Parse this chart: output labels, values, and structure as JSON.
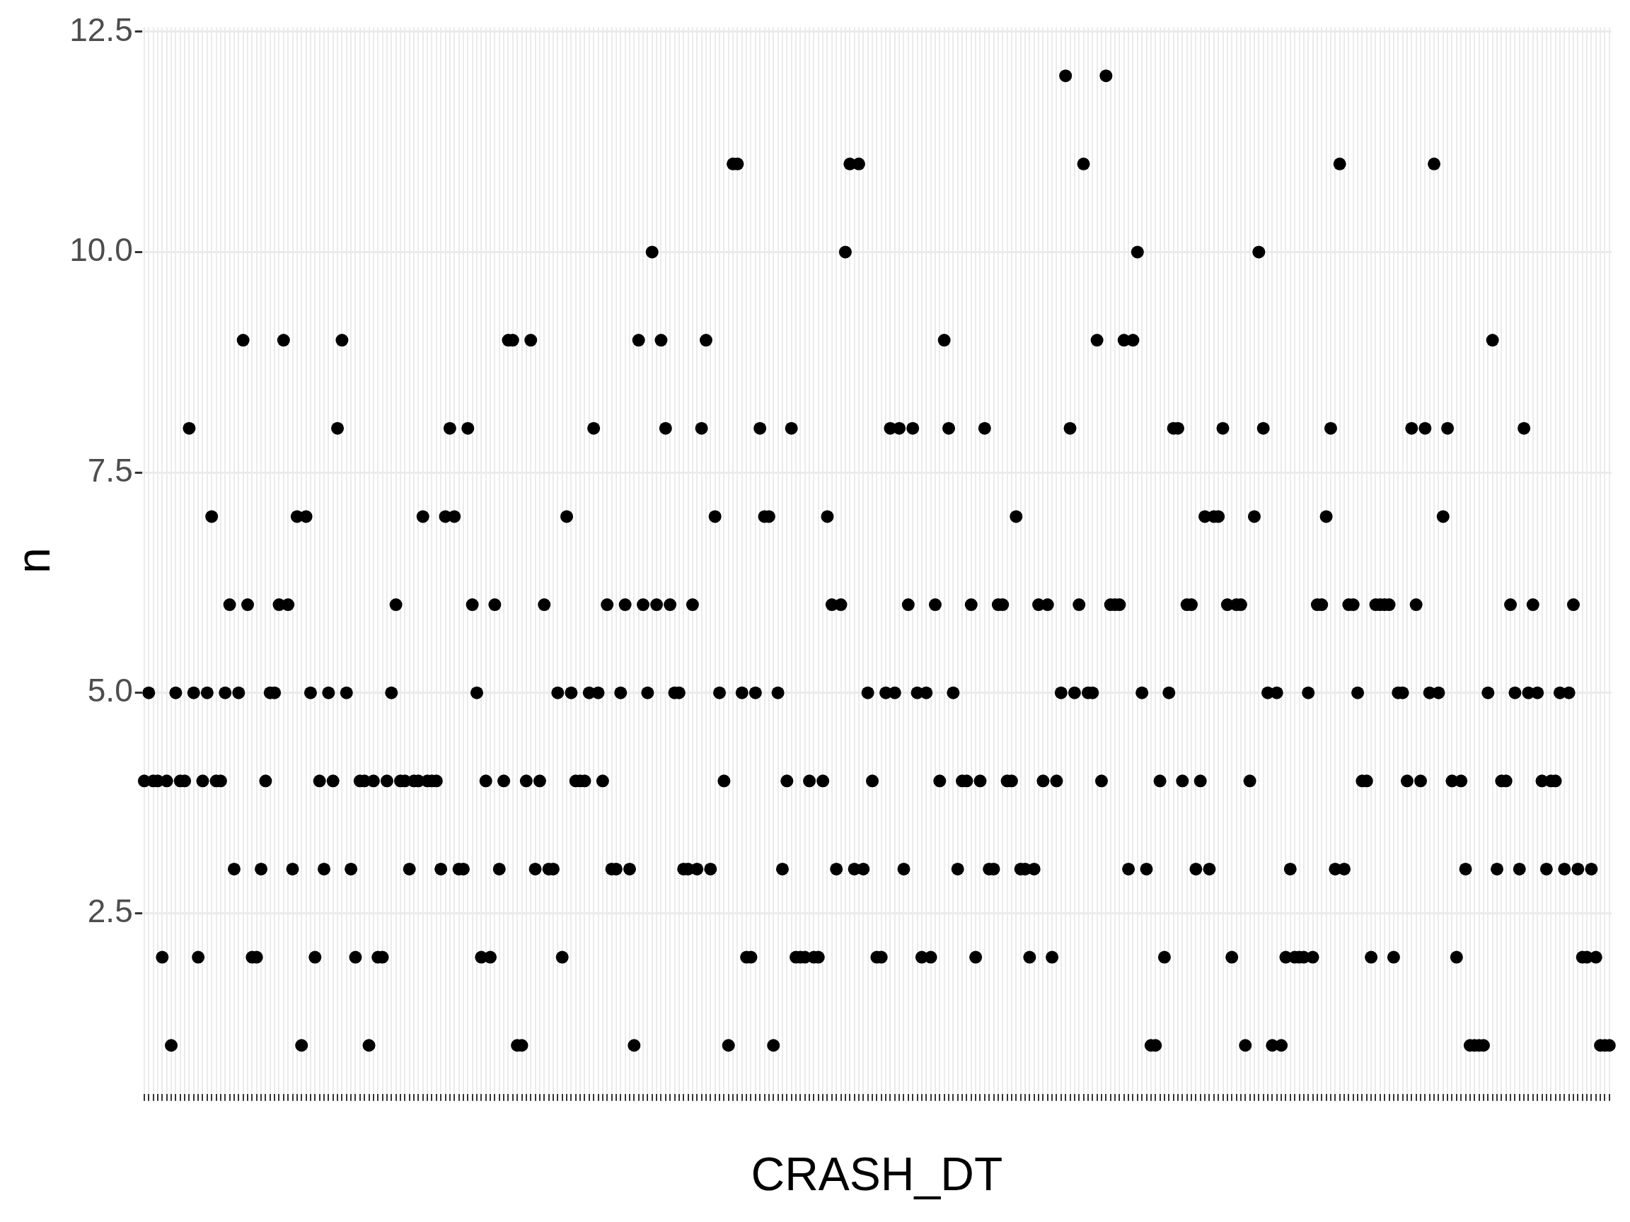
{
  "chart_data": {
    "type": "scatter",
    "xlabel": "CRASH_DT",
    "ylabel": "n",
    "categories": [
      null,
      null,
      null,
      null,
      null,
      null,
      null,
      null,
      null,
      null,
      null,
      null,
      null,
      null,
      null,
      null,
      null,
      null,
      null,
      null,
      null,
      null,
      null,
      null,
      null,
      null,
      null,
      null,
      null,
      null,
      null,
      null,
      null,
      null,
      null,
      null,
      null,
      null,
      null,
      null,
      null,
      null,
      null,
      null,
      null,
      null,
      null,
      null,
      null,
      null,
      null,
      null,
      null,
      null,
      null,
      null,
      null,
      null,
      null,
      null,
      null,
      null,
      null,
      null,
      null,
      null,
      null,
      null,
      null,
      null,
      null,
      null,
      null,
      null,
      null,
      null,
      null,
      null,
      null,
      null,
      null,
      null,
      null,
      null,
      null,
      null,
      null,
      null,
      null,
      null,
      null,
      null,
      null,
      null,
      null,
      null,
      null,
      null,
      null,
      null,
      null,
      null,
      null,
      null,
      null,
      null,
      null,
      null,
      null,
      null,
      null,
      null,
      null,
      null,
      null,
      null,
      null,
      null,
      null,
      null,
      null,
      null,
      null,
      null,
      null,
      null,
      null,
      null,
      null,
      null,
      null,
      null,
      null,
      null,
      null,
      null,
      null,
      null,
      null,
      null,
      null,
      null,
      null,
      null,
      null,
      null,
      null,
      null,
      null,
      null,
      null,
      null,
      null,
      null,
      null,
      null,
      null,
      null,
      null,
      null,
      null,
      null,
      null,
      null,
      null,
      null,
      null,
      null,
      null,
      null,
      null,
      null,
      null,
      null,
      null,
      null,
      null,
      null,
      null,
      null,
      null,
      null,
      null,
      null,
      null,
      null,
      null,
      null,
      null,
      null,
      null,
      null,
      null,
      null,
      null,
      null,
      null,
      null,
      null,
      null,
      null,
      null,
      null,
      null,
      null,
      null,
      null,
      null,
      null,
      null,
      null,
      null,
      null,
      null,
      null,
      null,
      null,
      null,
      null,
      null,
      null,
      null,
      null,
      null,
      null,
      null,
      null,
      null,
      null,
      null,
      null,
      null,
      null,
      null,
      null,
      null,
      null,
      null,
      null,
      null,
      null,
      null,
      null,
      null,
      null,
      null,
      null,
      null,
      null,
      null,
      null,
      null,
      null,
      null,
      null,
      null,
      null,
      null,
      null,
      null,
      null,
      null,
      null,
      null,
      null,
      null,
      null,
      null,
      null,
      null,
      null,
      null,
      null,
      null,
      null,
      null,
      null,
      null,
      null,
      null,
      null,
      null,
      null,
      null,
      null,
      null,
      null,
      null,
      null,
      null,
      null,
      null,
      null,
      null,
      null,
      null,
      null,
      null,
      null,
      null,
      null,
      null,
      null,
      null,
      null,
      null,
      null,
      null,
      null,
      null,
      null,
      null,
      null,
      null,
      null,
      null,
      null,
      null,
      null,
      null,
      null,
      null,
      null,
      null,
      null,
      null,
      null
    ],
    "values": [
      4,
      5,
      4,
      4,
      2,
      4,
      1,
      5,
      4,
      4,
      8,
      5,
      2,
      4,
      5,
      7,
      4,
      4,
      5,
      6,
      3,
      5,
      9,
      6,
      2,
      2,
      3,
      4,
      5,
      5,
      6,
      9,
      6,
      3,
      7,
      1,
      7,
      5,
      2,
      4,
      3,
      5,
      4,
      8,
      9,
      5,
      3,
      2,
      4,
      4,
      1,
      4,
      2,
      2,
      4,
      5,
      6,
      4,
      4,
      3,
      4,
      4,
      7,
      4,
      4,
      4,
      3,
      7,
      8,
      7,
      3,
      3,
      8,
      6,
      5,
      2,
      4,
      2,
      6,
      3,
      4,
      9,
      9,
      1,
      1,
      4,
      9,
      3,
      4,
      6,
      3,
      3,
      5,
      2,
      7,
      5,
      4,
      4,
      4,
      5,
      8,
      5,
      4,
      6,
      3,
      3,
      5,
      6,
      3,
      1,
      9,
      6,
      5,
      10,
      6,
      9,
      8,
      6,
      5,
      5,
      3,
      3,
      6,
      3,
      8,
      9,
      3,
      7,
      5,
      4,
      1,
      11,
      11,
      5,
      2,
      2,
      5,
      8,
      7,
      7,
      1,
      5,
      3,
      4,
      8,
      2,
      2,
      2,
      4,
      2,
      2,
      4,
      7,
      6,
      3,
      6,
      10,
      11,
      3,
      11,
      3,
      5,
      4,
      2,
      2,
      5,
      8,
      5,
      8,
      3,
      6,
      8,
      5,
      2,
      5,
      2,
      6,
      4,
      9,
      8,
      5,
      3,
      4,
      4,
      6,
      2,
      4,
      8,
      3,
      3,
      6,
      6,
      4,
      4,
      7,
      3,
      3,
      2,
      3,
      6,
      4,
      6,
      2,
      4,
      5,
      12,
      8,
      5,
      6,
      11,
      5,
      5,
      9,
      4,
      12,
      6,
      6,
      6,
      9,
      3,
      9,
      10,
      5,
      3,
      1,
      1,
      4,
      2,
      5,
      8,
      8,
      4,
      6,
      6,
      3,
      4,
      7,
      3,
      7,
      7,
      8,
      6,
      2,
      6,
      6,
      1,
      4,
      7,
      10,
      8,
      5,
      1,
      5,
      1,
      2,
      3,
      2,
      2,
      2,
      5,
      2,
      6,
      6,
      7,
      8,
      3,
      11,
      3,
      6,
      6,
      5,
      4,
      4,
      2,
      6,
      6,
      6,
      6,
      2,
      5,
      5,
      4,
      8,
      6,
      4,
      8,
      5,
      11,
      5,
      7,
      8,
      4,
      2,
      4,
      3,
      1,
      1,
      1,
      1,
      5,
      9,
      3,
      4,
      4,
      6,
      5,
      3,
      8,
      5,
      6,
      5,
      4,
      3,
      4,
      4,
      5,
      3,
      5,
      6,
      3,
      2,
      2,
      3,
      2,
      1,
      1,
      1
    ],
    "color": "#000000",
    "marker": "circle",
    "grid": true,
    "ylim": [
      0.45,
      12.55
    ],
    "yticks": [
      {
        "value": 2.5,
        "label": "2.5"
      },
      {
        "value": 5,
        "label": "5.0"
      },
      {
        "value": 7.5,
        "label": "7.5"
      },
      {
        "value": 10,
        "label": "10.0"
      },
      {
        "value": 12.5,
        "label": "12.5"
      }
    ]
  }
}
